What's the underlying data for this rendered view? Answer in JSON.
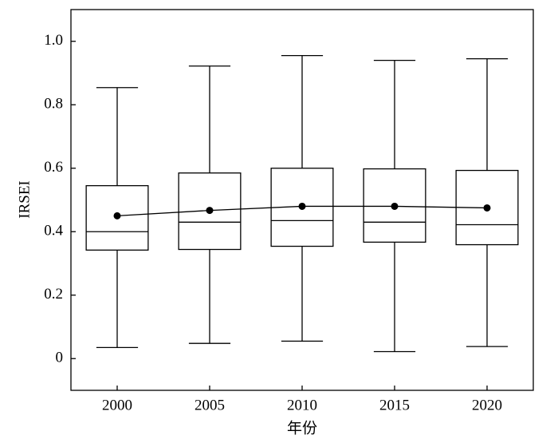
{
  "chart_data": {
    "type": "box",
    "x_label": "年份",
    "y_label": "IRSEI",
    "categories": [
      "2000",
      "2005",
      "2010",
      "2015",
      "2020"
    ],
    "min": [
      0.035,
      0.048,
      0.055,
      0.022,
      0.038
    ],
    "q1": [
      0.342,
      0.344,
      0.354,
      0.367,
      0.359
    ],
    "median": [
      0.4,
      0.43,
      0.435,
      0.43,
      0.422
    ],
    "q3": [
      0.545,
      0.585,
      0.6,
      0.598,
      0.593
    ],
    "max": [
      0.854,
      0.922,
      0.955,
      0.94,
      0.945
    ],
    "mean": [
      0.45,
      0.467,
      0.48,
      0.48,
      0.475
    ],
    "color": "#000000",
    "ylim": [
      -0.1,
      1.1
    ],
    "yticks": [
      0,
      0.2,
      0.4,
      0.6,
      0.8,
      {
        "value": 1,
        "label": "1.0"
      }
    ],
    "grid": false
  }
}
